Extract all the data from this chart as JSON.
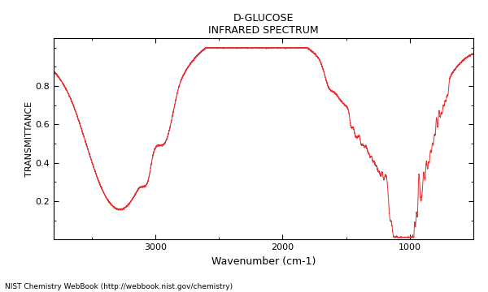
{
  "title_line1": "D-GLUCOSE",
  "title_line2": "INFRARED SPECTRUM",
  "xlabel": "Wavenumber (cm-1)",
  "ylabel": "TRANSMITTANCE",
  "footnote": "NIST Chemistry WebBook (http://webbook.nist.gov/chemistry)",
  "xlim": [
    3800,
    500
  ],
  "ylim": [
    0.0,
    1.05
  ],
  "line_color": "#e83030",
  "bg_color": "#ffffff",
  "xticks": [
    3000,
    2000,
    1000
  ],
  "yticks": [
    0.2,
    0.4,
    0.6,
    0.8
  ]
}
